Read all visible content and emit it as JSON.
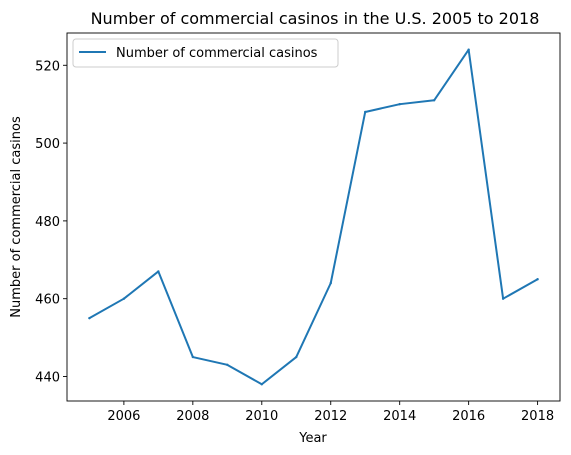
{
  "chart_data": {
    "type": "line",
    "title": "Number of commercial casinos in the U.S. 2005 to 2018",
    "xlabel": "Year",
    "ylabel": "Number of commercial casinos",
    "xlim": [
      2004.35,
      2018.65
    ],
    "ylim": [
      433.7,
      528.3
    ],
    "xticks": [
      2006,
      2008,
      2010,
      2012,
      2014,
      2016,
      2018
    ],
    "yticks": [
      440,
      460,
      480,
      500,
      520
    ],
    "grid": false,
    "legend_position": "top-left",
    "x": [
      2005,
      2006,
      2007,
      2008,
      2009,
      2010,
      2011,
      2012,
      2013,
      2014,
      2015,
      2016,
      2017,
      2018
    ],
    "series": [
      {
        "name": "Number of commercial casinos",
        "color": "#1f77b4",
        "values": [
          455,
          460,
          467,
          445,
          443,
          438,
          445,
          464,
          508,
          510,
          511,
          524,
          460,
          465
        ]
      }
    ]
  }
}
